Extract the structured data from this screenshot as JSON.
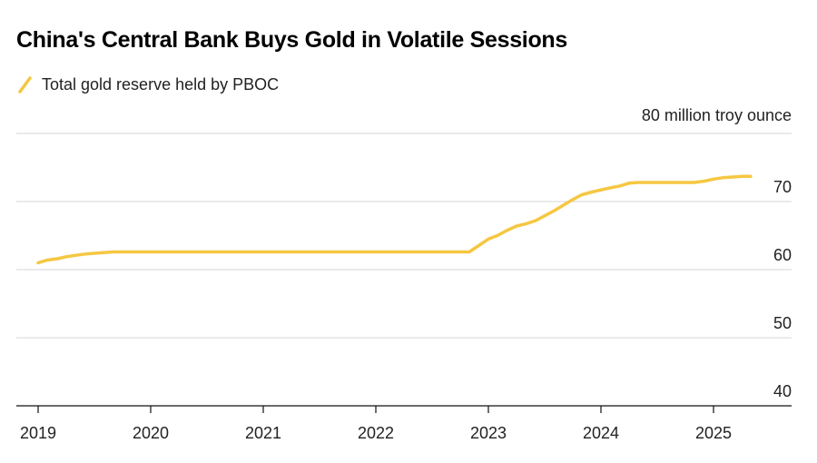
{
  "chart_data": {
    "type": "line",
    "title": "China's Central Bank Buys Gold in Volatile Sessions",
    "legend_position": "top-left",
    "y_unit_label": "80 million troy ounce",
    "ylim": [
      40,
      80
    ],
    "y_ticks": [
      40,
      50,
      60,
      70,
      80
    ],
    "y_tick_labels": [
      "40",
      "50",
      "60",
      "70",
      ""
    ],
    "y_axis_side": "right",
    "grid": "horizontal",
    "xlim": [
      2019.0,
      2025.75
    ],
    "x_ticks": [
      2019,
      2020,
      2021,
      2022,
      2023,
      2024,
      2025
    ],
    "x_tick_labels": [
      "2019",
      "2020",
      "2021",
      "2022",
      "2023",
      "2024",
      "2025"
    ],
    "series": [
      {
        "name": "Total gold reserve held by PBOC",
        "color": "#f5c742",
        "x": [
          2019.0,
          2019.08,
          2019.17,
          2019.25,
          2019.33,
          2019.42,
          2019.5,
          2019.58,
          2019.67,
          2019.75,
          2020.5,
          2021.5,
          2022.5,
          2022.83,
          2022.92,
          2023.0,
          2023.08,
          2023.17,
          2023.25,
          2023.33,
          2023.42,
          2023.5,
          2023.58,
          2023.67,
          2023.75,
          2023.83,
          2023.92,
          2024.0,
          2024.08,
          2024.17,
          2024.25,
          2024.33,
          2024.42,
          2024.5,
          2024.83,
          2024.92,
          2025.0,
          2025.08,
          2025.17,
          2025.25,
          2025.33
        ],
        "values": [
          61.0,
          61.4,
          61.6,
          61.9,
          62.1,
          62.3,
          62.4,
          62.5,
          62.6,
          62.6,
          62.6,
          62.6,
          62.6,
          62.6,
          63.6,
          64.5,
          65.0,
          65.8,
          66.4,
          66.7,
          67.2,
          67.9,
          68.6,
          69.5,
          70.3,
          71.0,
          71.4,
          71.7,
          72.0,
          72.3,
          72.7,
          72.8,
          72.8,
          72.8,
          72.8,
          73.0,
          73.3,
          73.5,
          73.6,
          73.7,
          73.7
        ]
      }
    ]
  }
}
